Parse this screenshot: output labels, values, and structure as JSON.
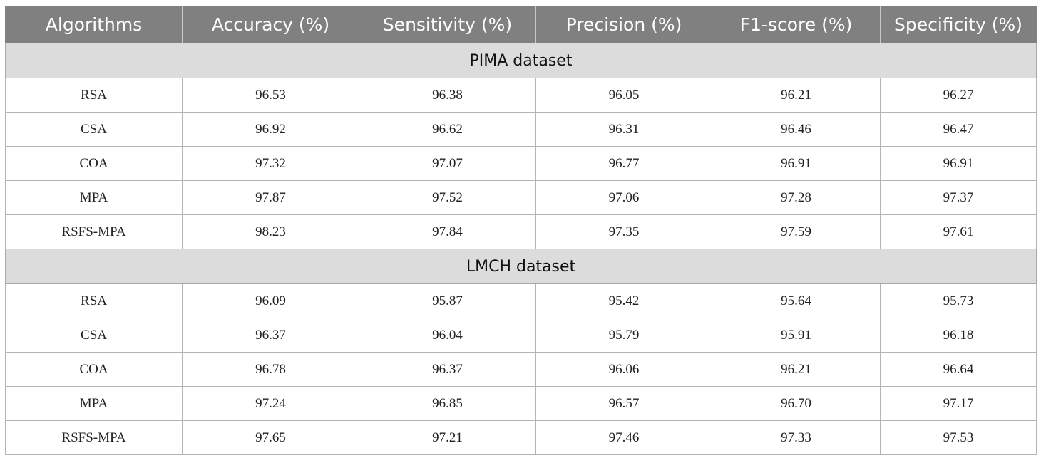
{
  "table": {
    "headers": [
      "Algorithms",
      "Accuracy (%)",
      "Sensitivity (%)",
      "Precision (%)",
      "F1-score (%)",
      "Specificity (%)"
    ],
    "sections": [
      {
        "title": "PIMA dataset",
        "rows": [
          [
            "RSA",
            "96.53",
            "96.38",
            "96.05",
            "96.21",
            "96.27"
          ],
          [
            "CSA",
            "96.92",
            "96.62",
            "96.31",
            "96.46",
            "96.47"
          ],
          [
            "COA",
            "97.32",
            "97.07",
            "96.77",
            "96.91",
            "96.91"
          ],
          [
            "MPA",
            "97.87",
            "97.52",
            "97.06",
            "97.28",
            "97.37"
          ],
          [
            "RSFS-MPA",
            "98.23",
            "97.84",
            "97.35",
            "97.59",
            "97.61"
          ]
        ]
      },
      {
        "title": "LMCH dataset",
        "rows": [
          [
            "RSA",
            "96.09",
            "95.87",
            "95.42",
            "95.64",
            "95.73"
          ],
          [
            "CSA",
            "96.37",
            "96.04",
            "95.79",
            "95.91",
            "96.18"
          ],
          [
            "COA",
            "96.78",
            "96.37",
            "96.06",
            "96.21",
            "96.64"
          ],
          [
            "MPA",
            "97.24",
            "96.85",
            "96.57",
            "96.70",
            "97.17"
          ],
          [
            "RSFS-MPA",
            "97.65",
            "97.21",
            "97.46",
            "97.33",
            "97.53"
          ]
        ]
      }
    ]
  }
}
